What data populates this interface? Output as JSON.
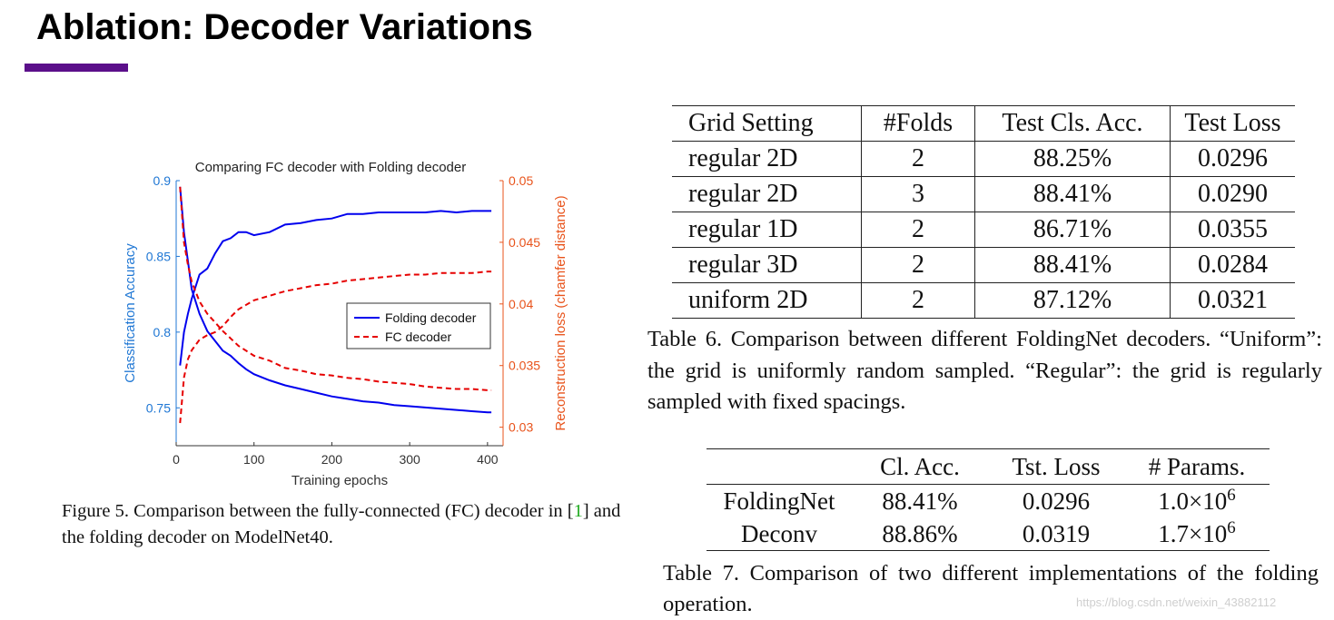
{
  "slide": {
    "title": "Ablation: Decoder Variations",
    "accent_color": "#5b0f8a"
  },
  "figure5": {
    "caption_label": "Figure 5.",
    "caption_text_1": "Comparison between the fully-connected (FC) decoder in [",
    "caption_cite": "1",
    "caption_text_2": "] and the folding decoder on ModelNet40."
  },
  "chart_data": {
    "type": "line",
    "title": "Comparing FC decoder with Folding decoder",
    "xlabel": "Training epochs",
    "ylabel_left": "Classification Accuracy",
    "ylabel_right": "Reconstruction loss (chamfer distance)",
    "xlim": [
      0,
      420
    ],
    "ylim_left": [
      0.725,
      0.9
    ],
    "ylim_right": [
      0.0285,
      0.05
    ],
    "x_ticks": [
      0,
      100,
      200,
      300,
      400
    ],
    "x_tick_labels": [
      "0",
      "100",
      "200",
      "300",
      "400"
    ],
    "y_left_ticks": [
      0.75,
      0.8,
      0.85,
      0.9
    ],
    "y_left_tick_labels": [
      "0.75",
      "0.8",
      "0.85",
      "0.9"
    ],
    "y_right_ticks": [
      0.03,
      0.035,
      0.04,
      0.045,
      0.05
    ],
    "y_right_tick_labels": [
      "0.03",
      "0.035",
      "0.04",
      "0.045",
      "0.05"
    ],
    "legend": [
      "Folding decoder",
      "FC decoder"
    ],
    "legend_position": "center-right",
    "left_axis_color": "#1f77d4",
    "right_axis_color": "#e8531b",
    "series": [
      {
        "name": "Folding decoder - accuracy",
        "axis": "left",
        "color": "#0000ee",
        "style": "solid",
        "x": [
          5,
          10,
          15,
          20,
          30,
          40,
          50,
          60,
          70,
          80,
          90,
          100,
          120,
          140,
          160,
          180,
          200,
          220,
          240,
          260,
          280,
          300,
          320,
          340,
          360,
          380,
          400,
          405
        ],
        "y": [
          0.778,
          0.8,
          0.812,
          0.822,
          0.838,
          0.842,
          0.852,
          0.86,
          0.862,
          0.866,
          0.866,
          0.864,
          0.866,
          0.871,
          0.872,
          0.874,
          0.875,
          0.878,
          0.878,
          0.879,
          0.879,
          0.879,
          0.879,
          0.88,
          0.879,
          0.88,
          0.88,
          0.88
        ]
      },
      {
        "name": "FC decoder - accuracy",
        "axis": "left",
        "color": "#e60000",
        "style": "dashed",
        "x": [
          5,
          10,
          15,
          20,
          30,
          40,
          50,
          60,
          70,
          80,
          90,
          100,
          120,
          140,
          160,
          180,
          200,
          220,
          240,
          260,
          280,
          300,
          320,
          340,
          360,
          380,
          400,
          405
        ],
        "y": [
          0.74,
          0.77,
          0.782,
          0.788,
          0.795,
          0.798,
          0.8,
          0.804,
          0.81,
          0.815,
          0.818,
          0.821,
          0.824,
          0.827,
          0.829,
          0.831,
          0.832,
          0.834,
          0.835,
          0.836,
          0.837,
          0.838,
          0.838,
          0.839,
          0.839,
          0.839,
          0.84,
          0.84
        ]
      },
      {
        "name": "Folding decoder - loss",
        "axis": "right",
        "color": "#0000ee",
        "style": "solid",
        "x": [
          5,
          10,
          15,
          20,
          30,
          40,
          50,
          60,
          70,
          80,
          90,
          100,
          120,
          140,
          160,
          180,
          200,
          220,
          240,
          260,
          280,
          300,
          320,
          340,
          360,
          380,
          400,
          405
        ],
        "y": [
          0.0495,
          0.0458,
          0.0435,
          0.0412,
          0.0392,
          0.0378,
          0.037,
          0.0362,
          0.0358,
          0.0352,
          0.0347,
          0.0343,
          0.0338,
          0.0334,
          0.0331,
          0.0328,
          0.0325,
          0.0323,
          0.0321,
          0.032,
          0.0318,
          0.0317,
          0.0316,
          0.0315,
          0.0314,
          0.0313,
          0.0312,
          0.0312
        ]
      },
      {
        "name": "FC decoder - loss",
        "axis": "right",
        "color": "#e60000",
        "style": "dashed",
        "x": [
          5,
          10,
          15,
          20,
          30,
          40,
          50,
          60,
          70,
          80,
          90,
          100,
          120,
          140,
          160,
          180,
          200,
          220,
          240,
          260,
          280,
          300,
          320,
          340,
          360,
          380,
          400,
          405
        ],
        "y": [
          0.0495,
          0.045,
          0.0432,
          0.0418,
          0.0402,
          0.0392,
          0.0385,
          0.0378,
          0.0372,
          0.0366,
          0.0362,
          0.0358,
          0.0354,
          0.0348,
          0.0346,
          0.0343,
          0.0342,
          0.034,
          0.0339,
          0.0337,
          0.0336,
          0.0335,
          0.0333,
          0.0332,
          0.0331,
          0.0331,
          0.033,
          0.033
        ]
      }
    ]
  },
  "table6": {
    "headers": [
      "Grid Setting",
      "#Folds",
      "Test Cls. Acc.",
      "Test Loss"
    ],
    "rows": [
      [
        "regular 2D",
        "2",
        "88.25%",
        "0.0296"
      ],
      [
        "regular 2D",
        "3",
        "88.41%",
        "0.0290"
      ],
      [
        "regular 1D",
        "2",
        "86.71%",
        "0.0355"
      ],
      [
        "regular 3D",
        "2",
        "88.41%",
        "0.0284"
      ],
      [
        "uniform 2D",
        "2",
        "87.12%",
        "0.0321"
      ]
    ],
    "caption": "Table 6.    Comparison between different FoldingNet decoders. “Uniform”: the grid is uniformly random sampled. “Regular”: the grid is regularly sampled with fixed spacings."
  },
  "table7": {
    "headers": [
      "",
      "Cl. Acc.",
      "Tst. Loss",
      "# Params."
    ],
    "rows": [
      {
        "name": "FoldingNet",
        "acc": "88.41%",
        "loss": "0.0296",
        "params_base": "1.0×10",
        "params_exp": "6"
      },
      {
        "name": "Deconv",
        "acc": "88.86%",
        "loss": "0.0319",
        "params_base": "1.7×10",
        "params_exp": "6"
      }
    ],
    "caption": "Table 7. Comparison of two different implementations of the folding operation."
  },
  "watermark": "https://blog.csdn.net/weixin_43882112"
}
